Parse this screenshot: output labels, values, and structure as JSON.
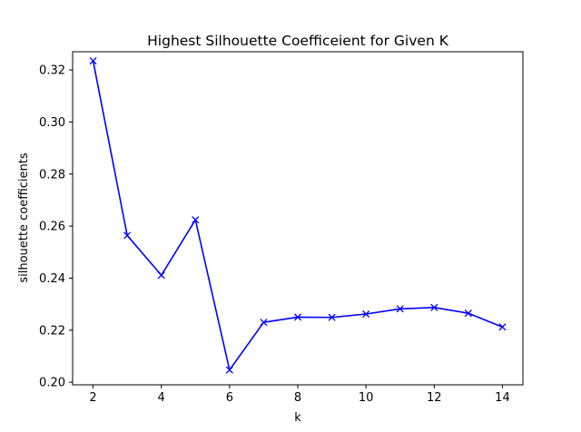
{
  "chart_data": {
    "type": "line",
    "title": "Highest Silhouette Coefficeient for Given K",
    "xlabel": "k",
    "ylabel": "silhouette coefficients",
    "xlim": [
      1.4,
      14.6
    ],
    "ylim": [
      0.199,
      0.327
    ],
    "xticks": [
      2,
      4,
      6,
      8,
      10,
      12,
      14
    ],
    "yticks": [
      0.2,
      0.22,
      0.24,
      0.26,
      0.28,
      0.3,
      0.32
    ],
    "xtick_labels": [
      "2",
      "4",
      "6",
      "8",
      "10",
      "12",
      "14"
    ],
    "ytick_labels": [
      "0.20",
      "0.22",
      "0.24",
      "0.26",
      "0.28",
      "0.30",
      "0.32"
    ],
    "grid": false,
    "series": [
      {
        "color": "#0000ff",
        "marker": "x",
        "x": [
          2,
          3,
          4,
          5,
          6,
          7,
          8,
          9,
          10,
          11,
          12,
          13,
          14
        ],
        "values": [
          0.3235,
          0.2564,
          0.2411,
          0.2624,
          0.2047,
          0.223,
          0.225,
          0.2249,
          0.2262,
          0.2282,
          0.2287,
          0.2265,
          0.2212
        ]
      }
    ]
  }
}
